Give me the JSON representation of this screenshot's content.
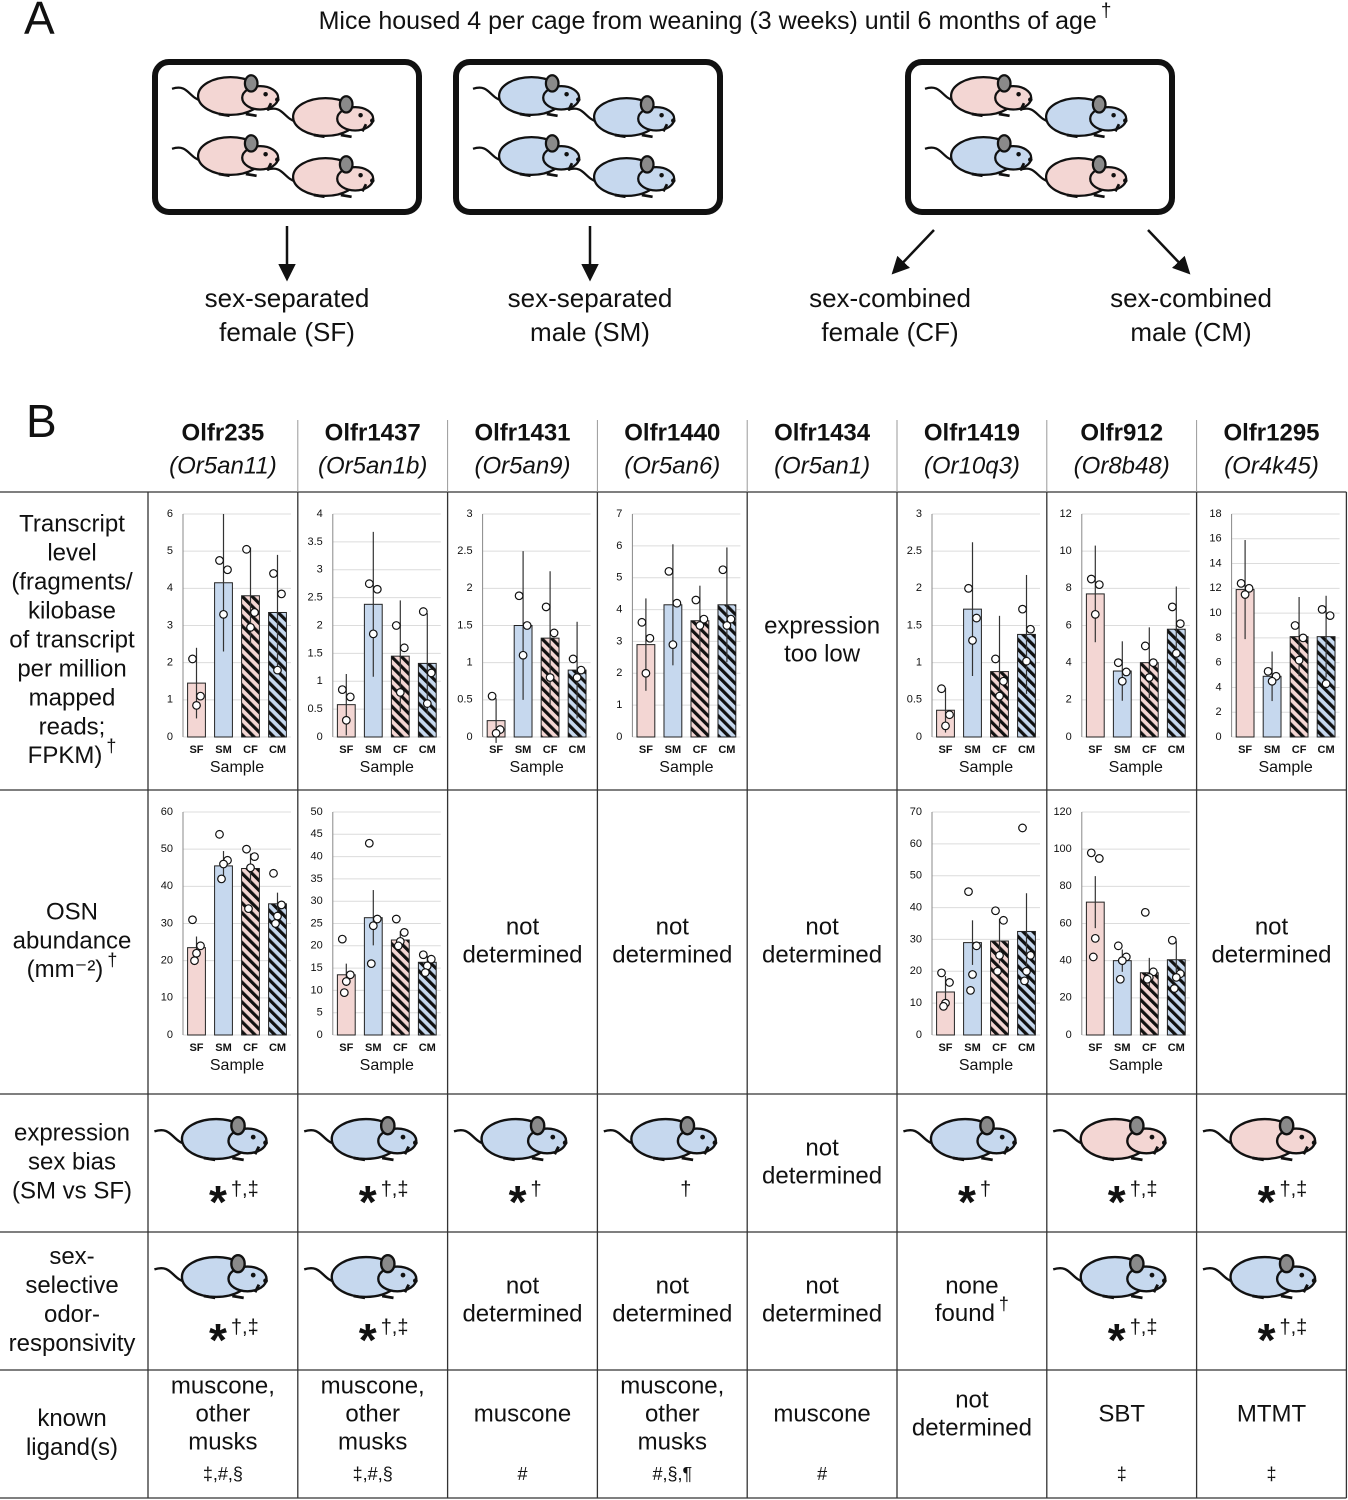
{
  "panel_a": {
    "label": "A",
    "title": "Mice housed 4 per cage from weaning (3 weeks) until 6 months of age",
    "title_note": "†",
    "cages": [
      {
        "mice": [
          "#f3d6d3",
          "#f3d6d3",
          "#f3d6d3",
          "#f3d6d3"
        ]
      },
      {
        "mice": [
          "#c6d8ee",
          "#c6d8ee",
          "#c6d8ee",
          "#c6d8ee"
        ]
      },
      {
        "mice": [
          "#f3d6d3",
          "#c6d8ee",
          "#c6d8ee",
          "#f3d6d3"
        ]
      }
    ],
    "groups": [
      {
        "lines": [
          "sex-separated",
          "female (SF)"
        ]
      },
      {
        "lines": [
          "sex-separated",
          "male (SM)"
        ]
      },
      {
        "lines": [
          "sex-combined",
          "female (CF)"
        ]
      },
      {
        "lines": [
          "sex-combined",
          "male (CM)"
        ]
      }
    ]
  },
  "panel_b": {
    "label": "B",
    "samples": [
      "SF",
      "SM",
      "CF",
      "CM"
    ],
    "sample_styles": [
      {
        "color": "#f3d6d3",
        "hatched": false
      },
      {
        "color": "#c6d8ee",
        "hatched": false
      },
      {
        "color": "#f3d6d3",
        "hatched": true
      },
      {
        "color": "#c6d8ee",
        "hatched": true
      }
    ],
    "xlabel": "Sample",
    "row_labels": [
      {
        "lines": [
          "Transcript",
          "level",
          "(fragments/",
          "kilobase",
          "of transcript",
          "per million",
          "mapped",
          "reads;",
          "FPKM)"
        ],
        "note": "†"
      },
      {
        "lines": [
          "OSN",
          "abundance",
          "(mm⁻²)"
        ],
        "note": "†"
      },
      {
        "lines": [
          "expression",
          "sex bias",
          "(SM vs SF)"
        ]
      },
      {
        "lines": [
          "sex-",
          "selective",
          "odor-",
          "responsivity"
        ]
      },
      {
        "lines": [
          "known",
          "ligand(s)"
        ]
      }
    ],
    "columns": [
      {
        "gene": "Olfr235",
        "gene_color": "#e4202a",
        "alias": "(Or5an11)",
        "fpkm": {
          "type": "bar",
          "ylim": [
            0,
            6
          ],
          "yticks": [
            0,
            1,
            2,
            3,
            4,
            5,
            6
          ],
          "values": [
            1.45,
            4.15,
            3.8,
            3.35
          ],
          "errors": [
            0.95,
            1.85,
            1.3,
            1.55
          ],
          "points": [
            [
              2.1,
              1.1,
              0.85
            ],
            [
              4.75,
              4.5,
              3.3
            ],
            [
              5.05,
              3.35,
              2.95
            ],
            [
              4.4,
              3.85,
              1.8
            ]
          ]
        },
        "osn": {
          "type": "bar",
          "ylim": [
            0,
            60
          ],
          "yticks": [
            0,
            10,
            20,
            30,
            40,
            50,
            60
          ],
          "values": [
            23.5,
            45.5,
            44.8,
            35.3
          ],
          "errors": [
            3,
            4,
            4,
            3
          ],
          "points": [
            [
              31,
              24,
              22,
              20
            ],
            [
              54,
              47,
              46,
              42
            ],
            [
              50,
              48,
              45,
              34
            ],
            [
              43.5,
              35,
              32,
              30
            ]
          ]
        },
        "sex_bias": {
          "mouse": "#c6d8ee",
          "mark": "*",
          "note": "†,‡"
        },
        "odor": {
          "mouse": "#c6d8ee",
          "mark": "*",
          "note": "†,‡"
        },
        "ligand": {
          "lines": [
            "muscone,",
            "other",
            "musks"
          ],
          "color": "#9433d6",
          "note": "‡,#,§"
        }
      },
      {
        "gene": "Olfr1437",
        "gene_color": "#b524d9",
        "alias": "(Or5an1b)",
        "fpkm": {
          "type": "bar",
          "ylim": [
            0,
            4
          ],
          "yticks": [
            0,
            0.5,
            1,
            1.5,
            2,
            2.5,
            3,
            3.5,
            4
          ],
          "values": [
            0.58,
            2.38,
            1.45,
            1.32
          ],
          "errors": [
            0.55,
            1.3,
            1.0,
            0.9
          ],
          "points": [
            [
              0.85,
              0.72,
              0.3
            ],
            [
              2.75,
              2.65,
              1.85
            ],
            [
              2.0,
              1.6,
              0.8
            ],
            [
              2.25,
              1.15,
              0.6
            ]
          ]
        },
        "osn": {
          "type": "bar",
          "ylim": [
            0,
            50
          ],
          "yticks": [
            0,
            5,
            10,
            15,
            20,
            25,
            30,
            35,
            40,
            45,
            50
          ],
          "values": [
            13.5,
            26.3,
            21.3,
            16.3
          ],
          "errors": [
            2.5,
            6.2,
            2,
            1.5
          ],
          "points": [
            [
              21.5,
              13.5,
              12,
              9.5
            ],
            [
              43,
              26,
              24.5,
              16
            ],
            [
              26,
              23,
              21,
              20
            ],
            [
              18,
              17,
              15.5,
              14
            ]
          ]
        },
        "sex_bias": {
          "mouse": "#c6d8ee",
          "mark": "*",
          "note": "†,‡"
        },
        "odor": {
          "mouse": "#c6d8ee",
          "mark": "*",
          "note": "†,‡"
        },
        "ligand": {
          "lines": [
            "muscone,",
            "other",
            "musks"
          ],
          "color": "#9433d6",
          "note": "‡,#,§"
        }
      },
      {
        "gene": "Olfr1431",
        "gene_color": "#f48320",
        "alias": "(Or5an9)",
        "fpkm": {
          "type": "bar",
          "ylim": [
            0,
            3
          ],
          "yticks": [
            0,
            0.5,
            1,
            1.5,
            2,
            2.5,
            3
          ],
          "values": [
            0.22,
            1.5,
            1.33,
            0.9
          ],
          "errors": [
            0.3,
            1.0,
            0.9,
            0.65
          ],
          "points": [
            [
              0.55,
              0.1,
              0.05
            ],
            [
              1.9,
              1.5,
              1.1
            ],
            [
              1.75,
              1.4,
              0.8
            ],
            [
              1.05,
              0.9,
              0.8
            ]
          ]
        },
        "osn": {
          "lines": [
            "not",
            "determined"
          ]
        },
        "sex_bias": {
          "mouse": "#c6d8ee",
          "mark": "*",
          "note": "†"
        },
        "odor": {
          "lines": [
            "not",
            "determined"
          ]
        },
        "ligand": {
          "lines": [
            "muscone"
          ],
          "color": "#9433d6",
          "note": "#"
        }
      },
      {
        "gene": "Olfr1440",
        "gene_color": "#1c1ad6",
        "alias": "(Or5an6)",
        "fpkm": {
          "type": "bar",
          "ylim": [
            0,
            7
          ],
          "yticks": [
            0,
            1,
            2,
            3,
            4,
            5,
            6,
            7
          ],
          "values": [
            2.9,
            4.15,
            3.65,
            4.15
          ],
          "errors": [
            1.45,
            1.9,
            1.1,
            1.8
          ],
          "points": [
            [
              3.6,
              3.1,
              2.0
            ],
            [
              5.2,
              4.2,
              2.9
            ],
            [
              4.3,
              3.7,
              3.5
            ],
            [
              5.25,
              3.7,
              3.5
            ]
          ]
        },
        "osn": {
          "lines": [
            "not",
            "determined"
          ]
        },
        "sex_bias": {
          "mouse": "#c6d8ee",
          "note": "†"
        },
        "odor": {
          "lines": [
            "not",
            "determined"
          ]
        },
        "ligand": {
          "lines": [
            "muscone,",
            "other",
            "musks"
          ],
          "color": "#9433d6",
          "note": "#,§,¶"
        }
      },
      {
        "gene": "Olfr1434",
        "gene_color": "#1d9e1d",
        "alias": "(Or5an1)",
        "fpkm": {
          "lines": [
            "expression",
            "too low"
          ]
        },
        "osn": {
          "lines": [
            "not",
            "determined"
          ]
        },
        "sex_bias": {
          "lines": [
            "not",
            "determined"
          ]
        },
        "odor": {
          "lines": [
            "not",
            "determined"
          ]
        },
        "ligand": {
          "lines": [
            "muscone"
          ],
          "color": "#9433d6",
          "note": "#"
        }
      },
      {
        "gene": "Olfr1419",
        "gene_color": "#595959",
        "alias": "(Or10q3)",
        "fpkm": {
          "type": "bar",
          "ylim": [
            0,
            3
          ],
          "yticks": [
            0,
            0.5,
            1,
            1.5,
            2,
            2.5,
            3
          ],
          "values": [
            0.36,
            1.72,
            0.88,
            1.38
          ],
          "errors": [
            0.3,
            0.9,
            0.75,
            0.8
          ],
          "points": [
            [
              0.65,
              0.3,
              0.15
            ],
            [
              2.0,
              1.6,
              1.3
            ],
            [
              1.05,
              0.75,
              0.55
            ],
            [
              1.72,
              1.45,
              1.02
            ]
          ]
        },
        "osn": {
          "type": "bar",
          "ylim": [
            0,
            70
          ],
          "yticks": [
            0,
            10,
            20,
            30,
            40,
            50,
            60,
            70
          ],
          "values": [
            13.5,
            29,
            29.5,
            32.5
          ],
          "errors": [
            5,
            7,
            7,
            12
          ],
          "points": [
            [
              19.5,
              16.5,
              10,
              9
            ],
            [
              45,
              28,
              19,
              14
            ],
            [
              39,
              36,
              25,
              20
            ],
            [
              65,
              25,
              20,
              17
            ]
          ]
        },
        "sex_bias": {
          "mouse": "#c6d8ee",
          "mark": "*",
          "note": "†"
        },
        "odor": {
          "lines": [
            "none",
            "found"
          ],
          "note": "†"
        },
        "ligand": {
          "lines": [
            "not",
            "determined"
          ],
          "color": "#111111"
        }
      },
      {
        "gene": "Olfr912",
        "gene_color": "#595959",
        "alias": "(Or8b48)",
        "fpkm": {
          "type": "bar",
          "ylim": [
            0,
            12
          ],
          "yticks": [
            0,
            2,
            4,
            6,
            8,
            10,
            12
          ],
          "values": [
            7.7,
            3.55,
            4.0,
            5.8
          ],
          "errors": [
            2.6,
            1.6,
            1.9,
            2.3
          ],
          "points": [
            [
              8.5,
              8.2,
              6.6
            ],
            [
              4.0,
              3.5,
              3.0
            ],
            [
              4.9,
              4.0,
              3.2
            ],
            [
              7.0,
              6.1,
              4.5
            ]
          ]
        },
        "osn": {
          "type": "bar",
          "ylim": [
            0,
            120
          ],
          "yticks": [
            0,
            20,
            40,
            60,
            80,
            100,
            120
          ],
          "values": [
            71.5,
            40,
            33.5,
            40.5
          ],
          "errors": [
            14,
            6,
            8,
            10
          ],
          "points": [
            [
              98,
              95,
              52,
              42
            ],
            [
              48,
              42,
              40,
              30
            ],
            [
              66,
              34,
              31,
              30
            ],
            [
              51,
              33,
              31,
              25
            ]
          ]
        },
        "sex_bias": {
          "mouse": "#f3d6d3",
          "mark": "*",
          "note": "†,‡"
        },
        "odor": {
          "mouse": "#c6d8ee",
          "mark": "*",
          "note": "†,‡"
        },
        "ligand": {
          "lines": [
            "SBT"
          ],
          "color": "#111111",
          "note": "‡"
        }
      },
      {
        "gene": "Olfr1295",
        "gene_color": "#595959",
        "alias": "(Or4k45)",
        "fpkm": {
          "type": "bar",
          "ylim": [
            0,
            18
          ],
          "yticks": [
            0,
            2,
            4,
            6,
            8,
            10,
            12,
            14,
            16,
            18
          ],
          "values": [
            11.9,
            4.9,
            8.1,
            8.1
          ],
          "errors": [
            4.0,
            2.0,
            3.2,
            3.3
          ],
          "points": [
            [
              12.4,
              12.0,
              11.5
            ],
            [
              5.3,
              4.9,
              4.5
            ],
            [
              9.0,
              8.0,
              6.2
            ],
            [
              10.3,
              9.8,
              4.3
            ]
          ]
        },
        "osn": {
          "lines": [
            "not",
            "determined"
          ]
        },
        "sex_bias": {
          "mouse": "#f3d6d3",
          "mark": "*",
          "note": "†,‡"
        },
        "odor": {
          "mouse": "#c6d8ee",
          "mark": "*",
          "note": "†,‡"
        },
        "ligand": {
          "lines": [
            "MTMT"
          ],
          "color": "#111111",
          "note": "‡"
        }
      }
    ]
  }
}
